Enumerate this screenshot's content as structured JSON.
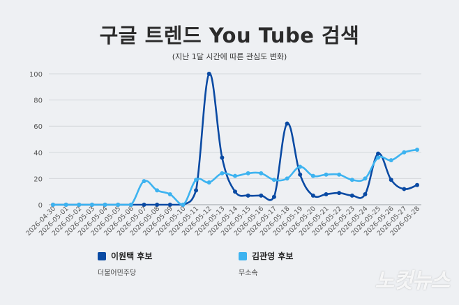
{
  "title": "구글 트렌드 You Tube 검색",
  "subtitle": "(지난 1달 시간에 따른 관심도 변화)",
  "watermark": "노컷뉴스",
  "chart_data": {
    "type": "line",
    "x": [
      "2026-04-30",
      "2026-05-01",
      "2026-05-02",
      "2026-05-03",
      "2026-05-04",
      "2026-05-05",
      "2026-05-06",
      "2026-05-07",
      "2026-05-08",
      "2026-05-09",
      "2026-05-10",
      "2026-05-11",
      "2026-05-12",
      "2026-05-13",
      "2026-05-14",
      "2026-05-15",
      "2026-05-16",
      "2026-05-17",
      "2026-05-18",
      "2026-05-19",
      "2026-05-20",
      "2026-05-21",
      "2026-05-22",
      "2026-05-23",
      "2026-05-24",
      "2026-05-25",
      "2026-05-26",
      "2026-05-27",
      "2026-05-28"
    ],
    "yticks": [
      0,
      20,
      40,
      60,
      80,
      100
    ],
    "ylim": [
      0,
      100
    ],
    "grid": true,
    "legend_position": "bottom-left",
    "series": [
      {
        "name": "이원택 후보",
        "party": "더불어민주당",
        "color": "#0a4aa3",
        "values": [
          0,
          0,
          0,
          0,
          0,
          0,
          0,
          0,
          0,
          0,
          0,
          11,
          100,
          36,
          10,
          7,
          7,
          6,
          62,
          23,
          7,
          8,
          9,
          7,
          8,
          39,
          19,
          12,
          15
        ]
      },
      {
        "name": "김관영 후보",
        "party": "무소속",
        "color": "#3db3f0",
        "values": [
          0,
          0,
          0,
          0,
          0,
          0,
          0,
          18,
          11,
          8,
          0,
          19,
          17,
          24,
          22,
          24,
          24,
          19,
          20,
          29,
          22,
          23,
          23,
          19,
          20,
          36,
          34,
          40,
          42
        ]
      }
    ]
  }
}
